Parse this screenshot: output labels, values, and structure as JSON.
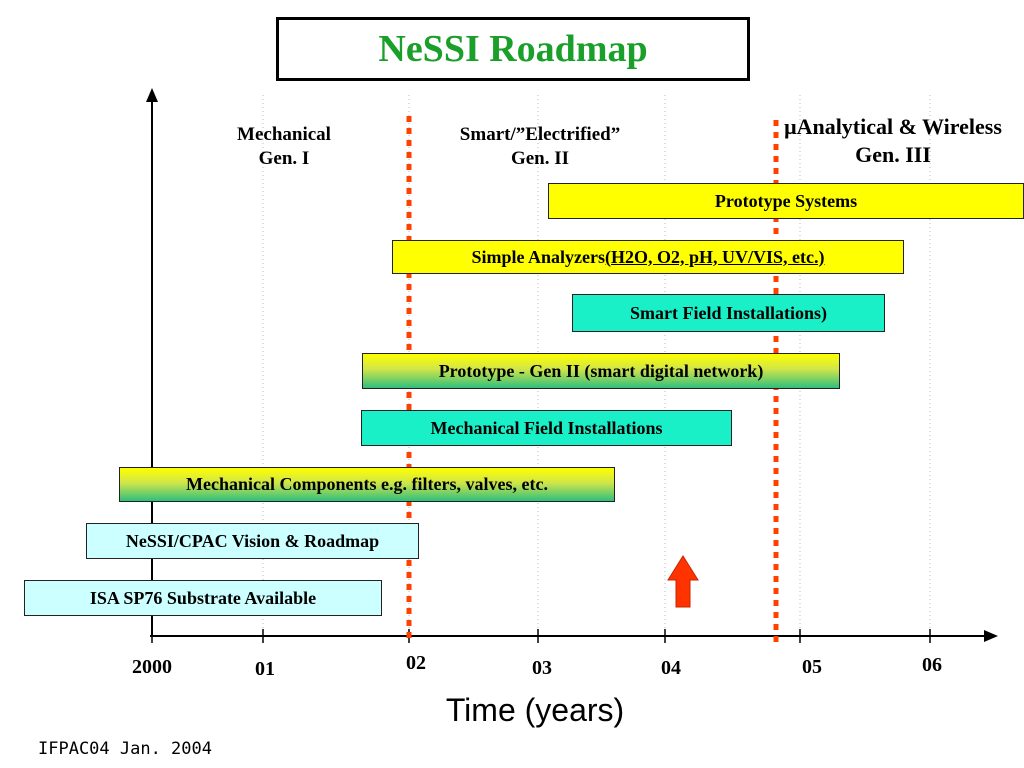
{
  "title": "NeSSI Roadmap",
  "eras": [
    {
      "line1": "Mechanical",
      "line2": "Gen. I"
    },
    {
      "line1": "Smart/”Electrified”",
      "line2": "Gen. II"
    },
    {
      "line1": "μAnalytical & Wireless",
      "line2": "Gen. III"
    }
  ],
  "bars": [
    {
      "label": "Prototype Systems",
      "fill": "yellow"
    },
    {
      "label": "Simple Analyzers",
      "label_tail": " (H2O, O2,  pH, UV/VIS, etc.)",
      "fill": "yellow"
    },
    {
      "label": "Smart Field Installations)",
      "fill": "cyan"
    },
    {
      "label": "Prototype - Gen II (smart digital network)",
      "fill": "gradient"
    },
    {
      "label": "Mechanical Field Installations",
      "fill": "cyan"
    },
    {
      "label": "Mechanical Components e.g. filters, valves, etc.",
      "fill": "gradient"
    },
    {
      "label": "NeSSI/CPAC Vision & Roadmap",
      "fill": "light-cyan"
    },
    {
      "label": "ISA SP76 Substrate Available",
      "fill": "light-cyan"
    }
  ],
  "x_ticks": [
    "2000",
    "01",
    "02",
    "03",
    "04",
    "05",
    "06"
  ],
  "x_axis_label": "Time (years)",
  "footer": "IFPAC04 Jan. 2004",
  "colors": {
    "title": "#1aa02a",
    "era_divider": "#ff4000",
    "arrow": "#ff3300",
    "yellow": "#ffff00",
    "cyan": "#19f0c8",
    "light_cyan": "#ccffff"
  },
  "icons": {
    "current_marker": "up-arrow-icon"
  }
}
